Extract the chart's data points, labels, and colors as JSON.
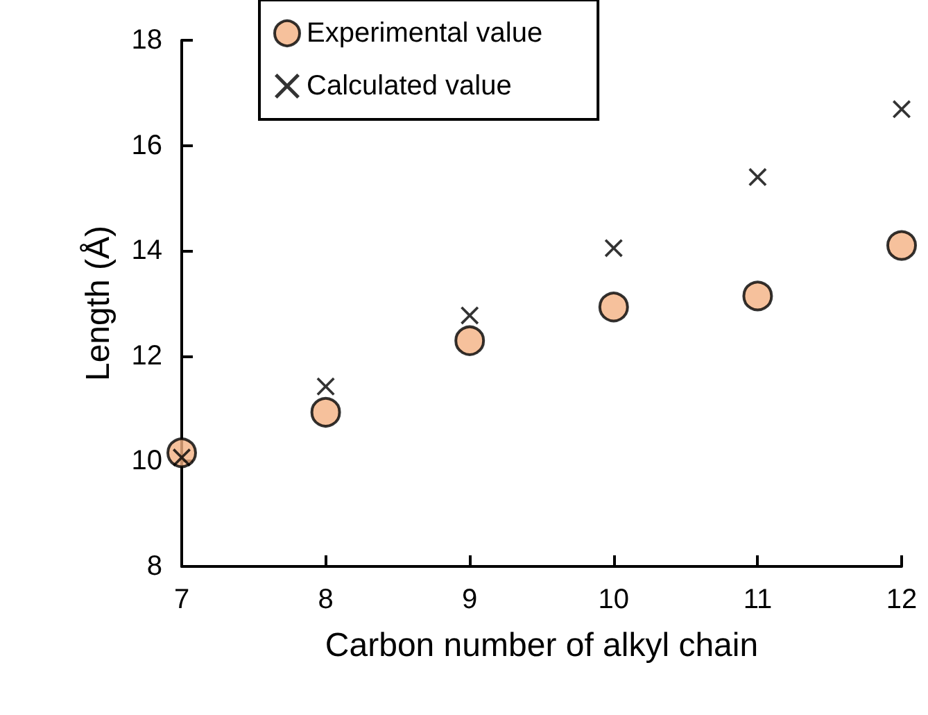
{
  "chart_data": {
    "type": "scatter",
    "xlabel": "Carbon number of alkyl chain",
    "ylabel": "Length (Å)",
    "x": [
      7,
      8,
      9,
      10,
      11,
      12
    ],
    "series": [
      {
        "name": "Experimental value",
        "color": "#f4b183",
        "marker": "circle",
        "values": [
          10.16,
          10.93,
          12.29,
          12.93,
          13.14,
          14.1
        ]
      },
      {
        "name": "Calculated value",
        "color": "#000000",
        "marker": "cross",
        "values": [
          10.07,
          11.42,
          12.77,
          14.05,
          15.4,
          16.69
        ]
      }
    ],
    "xlim": [
      7,
      12
    ],
    "xticks": [
      7,
      8,
      9,
      10,
      11,
      12
    ],
    "ylim": [
      8,
      18
    ],
    "yticks": [
      8,
      10,
      12,
      14,
      16,
      18
    ],
    "grid": false,
    "legend": "top left"
  }
}
